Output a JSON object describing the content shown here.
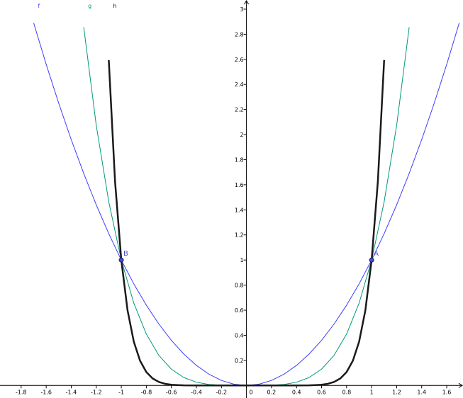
{
  "chart_data": {
    "type": "line",
    "xlim": [
      -1.969,
      1.73
    ],
    "ylim": [
      -0.1,
      3.073
    ],
    "xticks": [
      -1.8,
      -1.6,
      -1.4,
      -1.2,
      -1,
      -0.8,
      -0.6,
      -0.4,
      -0.2,
      0,
      0.2,
      0.4,
      0.6,
      0.8,
      1,
      1.2,
      1.4,
      1.6
    ],
    "yticks": [
      0.2,
      0.4,
      0.6,
      0.8,
      1,
      1.2,
      1.4,
      1.6,
      1.8,
      2,
      2.2,
      2.4,
      2.6,
      2.8,
      3
    ],
    "series": [
      {
        "name": "f",
        "color": "#3c3cff",
        "width": 1,
        "x": [
          -1.7,
          -1.6,
          -1.5,
          -1.4,
          -1.3,
          -1.2,
          -1.1,
          -1,
          -0.9,
          -0.8,
          -0.7,
          -0.6,
          -0.5,
          -0.4,
          -0.3,
          -0.2,
          -0.1,
          0,
          0.1,
          0.2,
          0.3,
          0.4,
          0.5,
          0.6,
          0.7,
          0.8,
          0.9,
          1,
          1.1,
          1.2,
          1.3,
          1.4,
          1.5,
          1.6,
          1.7
        ],
        "values": [
          2.89,
          2.56,
          2.25,
          1.96,
          1.69,
          1.44,
          1.21,
          1,
          0.81,
          0.64,
          0.49,
          0.36,
          0.25,
          0.16,
          0.09,
          0.04,
          0.01,
          0,
          0.01,
          0.04,
          0.09,
          0.16,
          0.25,
          0.36,
          0.49,
          0.64,
          0.81,
          1,
          1.21,
          1.44,
          1.69,
          1.96,
          2.25,
          2.56,
          2.89
        ]
      },
      {
        "name": "g",
        "color": "#00987a",
        "width": 1,
        "x": [
          -1.3,
          -1.2,
          -1.1,
          -1,
          -0.9,
          -0.8,
          -0.7,
          -0.6,
          -0.5,
          -0.4,
          -0.3,
          -0.2,
          -0.1,
          0,
          0.1,
          0.2,
          0.3,
          0.4,
          0.5,
          0.6,
          0.7,
          0.8,
          0.9,
          1,
          1.1,
          1.2,
          1.3
        ],
        "values": [
          2.856,
          2.074,
          1.464,
          1,
          0.656,
          0.41,
          0.24,
          0.13,
          0.063,
          0.026,
          0.008,
          0.002,
          0,
          0,
          0,
          0.002,
          0.008,
          0.026,
          0.063,
          0.13,
          0.24,
          0.41,
          0.656,
          1,
          1.464,
          2.074,
          2.856
        ]
      },
      {
        "name": "h",
        "color": "#1a1a1a",
        "width": 2.5,
        "x": [
          -1.1,
          -1.05,
          -1,
          -0.95,
          -0.9,
          -0.85,
          -0.8,
          -0.75,
          -0.7,
          -0.65,
          -0.6,
          -0.55,
          -0.5,
          -0.4,
          -0.2,
          0,
          0.2,
          0.4,
          0.5,
          0.55,
          0.6,
          0.65,
          0.7,
          0.75,
          0.8,
          0.85,
          0.9,
          0.95,
          1,
          1.05,
          1.1
        ],
        "values": [
          2.594,
          1.629,
          1,
          0.599,
          0.349,
          0.197,
          0.107,
          0.056,
          0.028,
          0.013,
          0.006,
          0.003,
          0.001,
          0,
          0,
          0,
          0,
          0,
          0.001,
          0.003,
          0.006,
          0.013,
          0.028,
          0.056,
          0.107,
          0.197,
          0.349,
          0.599,
          1,
          1.629,
          2.594
        ]
      }
    ],
    "points": [
      {
        "label": "A",
        "x": 1,
        "y": 1
      },
      {
        "label": "B",
        "x": -1,
        "y": 1
      }
    ]
  }
}
